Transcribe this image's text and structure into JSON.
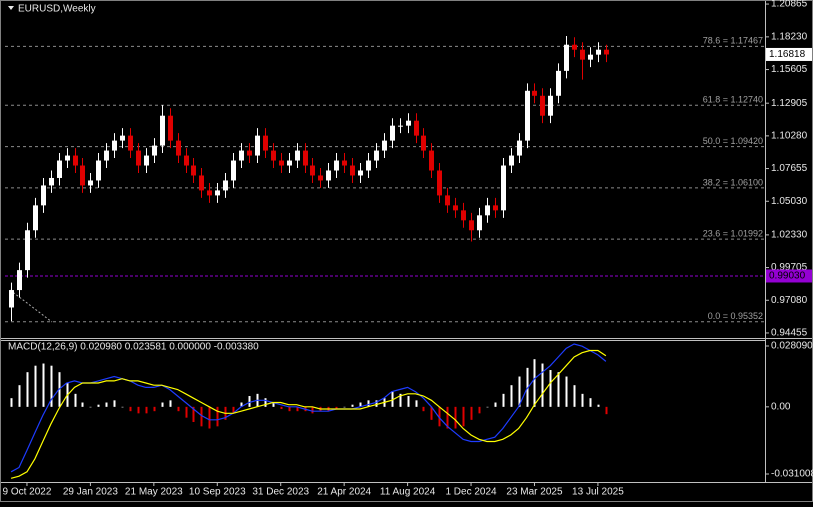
{
  "chart_data": [
    {
      "type": "candlestick",
      "title": "EURUSD,Weekly",
      "categories": [
        null,
        null,
        "9 Oct 2022",
        null,
        null,
        null,
        null,
        null,
        null,
        null,
        "29 Jan 2023",
        null,
        null,
        null,
        null,
        null,
        null,
        null,
        "21 May 2023",
        null,
        null,
        null,
        null,
        null,
        null,
        null,
        "10 Sep 2023",
        null,
        null,
        null,
        null,
        null,
        null,
        null,
        "31 Dec 2023",
        null,
        null,
        null,
        null,
        null,
        null,
        null,
        "21 Apr 2024",
        null,
        null,
        null,
        null,
        null,
        null,
        null,
        "11 Aug 2024",
        null,
        null,
        null,
        null,
        null,
        null,
        null,
        "1 Dec 2024",
        null,
        null,
        null,
        null,
        null,
        null,
        null,
        "23 Mar 2025",
        null,
        null,
        null,
        null,
        null,
        null,
        null,
        "13 Jul 2025",
        null
      ],
      "open": [
        0.965,
        0.979,
        0.995,
        1.027,
        1.047,
        1.063,
        1.069,
        1.083,
        1.087,
        1.079,
        1.063,
        1.067,
        1.083,
        1.091,
        1.099,
        1.103,
        1.091,
        1.079,
        1.087,
        1.095,
        1.119,
        1.099,
        1.087,
        1.079,
        1.071,
        1.059,
        1.055,
        1.059,
        1.067,
        1.083,
        1.091,
        1.087,
        1.103,
        1.091,
        1.083,
        1.079,
        1.083,
        1.091,
        1.079,
        1.071,
        1.067,
        1.075,
        1.083,
        1.079,
        1.071,
        1.075,
        1.083,
        1.091,
        1.099,
        1.111,
        1.111,
        1.115,
        1.103,
        1.091,
        1.075,
        1.055,
        1.047,
        1.043,
        1.035,
        1.027,
        1.039,
        1.047,
        1.043,
        1.079,
        1.087,
        1.099,
        1.139,
        1.135,
        1.119,
        1.135,
        1.155,
        1.176,
        1.172,
        1.164,
        1.168,
        1.172
      ],
      "high": [
        0.985,
        1.001,
        1.033,
        1.053,
        1.069,
        1.075,
        1.089,
        1.093,
        1.093,
        1.085,
        1.073,
        1.089,
        1.097,
        1.105,
        1.109,
        1.109,
        1.097,
        1.093,
        1.101,
        1.1275,
        1.125,
        1.105,
        1.093,
        1.085,
        1.077,
        1.065,
        1.065,
        1.073,
        1.089,
        1.097,
        1.097,
        1.109,
        1.109,
        1.097,
        1.089,
        1.089,
        1.097,
        1.097,
        1.085,
        1.077,
        1.081,
        1.089,
        1.089,
        1.085,
        1.081,
        1.089,
        1.097,
        1.105,
        1.117,
        1.117,
        1.121,
        1.121,
        1.109,
        1.097,
        1.081,
        1.061,
        1.053,
        1.049,
        1.041,
        1.045,
        1.053,
        1.053,
        1.085,
        1.093,
        1.105,
        1.145,
        1.145,
        1.141,
        1.141,
        1.161,
        1.183,
        1.182,
        1.178,
        1.174,
        1.178,
        1.176
      ],
      "low": [
        0.954,
        0.973,
        0.989,
        1.021,
        1.041,
        1.057,
        1.063,
        1.077,
        1.073,
        1.057,
        1.057,
        1.061,
        1.077,
        1.085,
        1.093,
        1.085,
        1.073,
        1.073,
        1.081,
        1.089,
        1.093,
        1.081,
        1.073,
        1.065,
        1.053,
        1.049,
        1.049,
        1.053,
        1.061,
        1.077,
        1.081,
        1.081,
        1.085,
        1.077,
        1.073,
        1.073,
        1.077,
        1.073,
        1.065,
        1.061,
        1.061,
        1.069,
        1.073,
        1.065,
        1.065,
        1.069,
        1.077,
        1.085,
        1.093,
        1.105,
        1.105,
        1.097,
        1.085,
        1.069,
        1.049,
        1.041,
        1.037,
        1.029,
        1.018,
        1.021,
        1.033,
        1.037,
        1.037,
        1.073,
        1.081,
        1.093,
        1.129,
        1.113,
        1.113,
        1.129,
        1.149,
        1.166,
        1.148,
        1.158,
        1.162,
        1.162
      ],
      "close": [
        0.979,
        0.995,
        1.027,
        1.047,
        1.063,
        1.069,
        1.083,
        1.087,
        1.079,
        1.063,
        1.067,
        1.083,
        1.091,
        1.099,
        1.103,
        1.091,
        1.079,
        1.087,
        1.095,
        1.119,
        1.099,
        1.087,
        1.079,
        1.071,
        1.059,
        1.055,
        1.059,
        1.067,
        1.083,
        1.091,
        1.087,
        1.103,
        1.091,
        1.083,
        1.079,
        1.083,
        1.091,
        1.079,
        1.071,
        1.067,
        1.075,
        1.083,
        1.079,
        1.071,
        1.075,
        1.083,
        1.091,
        1.099,
        1.111,
        1.111,
        1.115,
        1.103,
        1.091,
        1.075,
        1.055,
        1.047,
        1.043,
        1.035,
        1.027,
        1.039,
        1.047,
        1.043,
        1.079,
        1.087,
        1.099,
        1.139,
        1.135,
        1.119,
        1.135,
        1.155,
        1.176,
        1.172,
        1.164,
        1.168,
        1.172,
        1.16818
      ],
      "up_color": "#ffffff",
      "down_color": "#e00000",
      "ylim": [
        0.9405,
        1.2111
      ],
      "yticks": [
        1.20865,
        {
          "value": 1.1823,
          "label": "1.18230"
        },
        1.15605,
        1.12905,
        {
          "value": 1.1028,
          "label": "1.10280"
        },
        1.07655,
        {
          "value": 1.0503,
          "label": "1.05030"
        },
        {
          "value": 1.0233,
          "label": "1.02330"
        },
        0.99705,
        {
          "value": 0.9708,
          "label": "0.97080"
        },
        0.94455
      ],
      "fibonacci": [
        {
          "label": "78.6 = 1.17467",
          "price": 1.17467
        },
        {
          "label": "61.8 = 1.12740",
          "price": 1.1274
        },
        {
          "label": "50.0 = 1.09420",
          "price": 1.0942
        },
        {
          "label": "38.2 = 1.06100",
          "price": 1.061
        },
        {
          "label": "23.6 = 1.01992",
          "price": 1.01992
        },
        {
          "label": "0.0 = 0.95352",
          "price": 0.95352
        }
      ],
      "current_price": 1.16818,
      "level_line": {
        "value": 0.9903,
        "label": "0.99030",
        "color": "#9400d3"
      }
    },
    {
      "type": "macd",
      "title": "MACD(12,26,9) 0.020980 0.023581 0.000000 -0.003380",
      "ylim": [
        -0.0347,
        0.0304
      ],
      "yticks": [
        {
          "value": 0.02809,
          "label": "0.028090"
        },
        {
          "value": 0,
          "label": "0.00"
        },
        {
          "value": -0.031008,
          "label": "-0.031008"
        }
      ],
      "histogram": {
        "up_color": "#ffffff",
        "down_color": "#e00000",
        "values": [
          0.004,
          0.01,
          0.016,
          0.019,
          0.02,
          0.019,
          0.016,
          0.011,
          0.006,
          0.002,
          0.0,
          0.001,
          0.002,
          0.003,
          0.0,
          -0.002,
          -0.003,
          -0.003,
          -0.002,
          0.002,
          0.003,
          -0.002,
          -0.005,
          -0.007,
          -0.009,
          -0.01,
          -0.009,
          -0.006,
          -0.003,
          0.002,
          0.005,
          0.006,
          0.004,
          0.002,
          -0.001,
          -0.002,
          -0.002,
          -0.002,
          -0.003,
          -0.002,
          -0.002,
          -0.001,
          0.0,
          0.001,
          0.002,
          0.003,
          0.003,
          0.004,
          0.007,
          0.006,
          0.005,
          0.003,
          -0.002,
          -0.006,
          -0.009,
          -0.01,
          -0.01,
          -0.009,
          -0.006,
          -0.003,
          0.0,
          0.002,
          0.006,
          0.01,
          0.014,
          0.018,
          0.022,
          0.02,
          0.017,
          0.016,
          0.014,
          0.01,
          0.006,
          0.004,
          0.001,
          -0.00338
        ]
      },
      "series": [
        {
          "color": "#1e3cff",
          "values": [
            -0.03,
            -0.028,
            -0.02,
            -0.012,
            -0.004,
            0.003,
            0.008,
            0.011,
            0.012,
            0.011,
            0.011,
            0.012,
            0.013,
            0.014,
            0.013,
            0.012,
            0.01,
            0.009,
            0.009,
            0.01,
            0.008,
            0.005,
            0.002,
            -0.001,
            -0.004,
            -0.006,
            -0.006,
            -0.005,
            -0.003,
            0.0,
            0.002,
            0.003,
            0.003,
            0.002,
            0.001,
            0.0,
            0.0,
            -0.001,
            -0.002,
            -0.002,
            -0.002,
            -0.001,
            -0.001,
            -0.001,
            0.0,
            0.001,
            0.002,
            0.004,
            0.007,
            0.008,
            0.009,
            0.007,
            0.004,
            0.0,
            -0.005,
            -0.009,
            -0.012,
            -0.015,
            -0.016,
            -0.016,
            -0.015,
            -0.014,
            -0.01,
            -0.005,
            0.0,
            0.008,
            0.013,
            0.016,
            0.019,
            0.023,
            0.027,
            0.029,
            0.028,
            0.026,
            0.024,
            0.02098
          ]
        },
        {
          "color": "#ffff00",
          "values": [
            -0.033,
            -0.032,
            -0.03,
            -0.024,
            -0.016,
            -0.008,
            -0.001,
            0.005,
            0.009,
            0.011,
            0.011,
            0.011,
            0.012,
            0.012,
            0.013,
            0.012,
            0.012,
            0.011,
            0.01,
            0.01,
            0.009,
            0.008,
            0.006,
            0.004,
            0.002,
            0.0,
            -0.002,
            -0.003,
            -0.003,
            -0.002,
            -0.001,
            0.0,
            0.001,
            0.002,
            0.002,
            0.001,
            0.001,
            0.0,
            0.0,
            -0.001,
            -0.001,
            -0.001,
            -0.001,
            -0.001,
            -0.001,
            0.0,
            0.001,
            0.002,
            0.003,
            0.005,
            0.006,
            0.006,
            0.005,
            0.003,
            0.0,
            -0.003,
            -0.006,
            -0.01,
            -0.013,
            -0.015,
            -0.016,
            -0.016,
            -0.015,
            -0.013,
            -0.01,
            -0.005,
            0.001,
            0.006,
            0.011,
            0.015,
            0.019,
            0.023,
            0.025,
            0.026,
            0.026,
            0.023581
          ]
        }
      ]
    }
  ]
}
